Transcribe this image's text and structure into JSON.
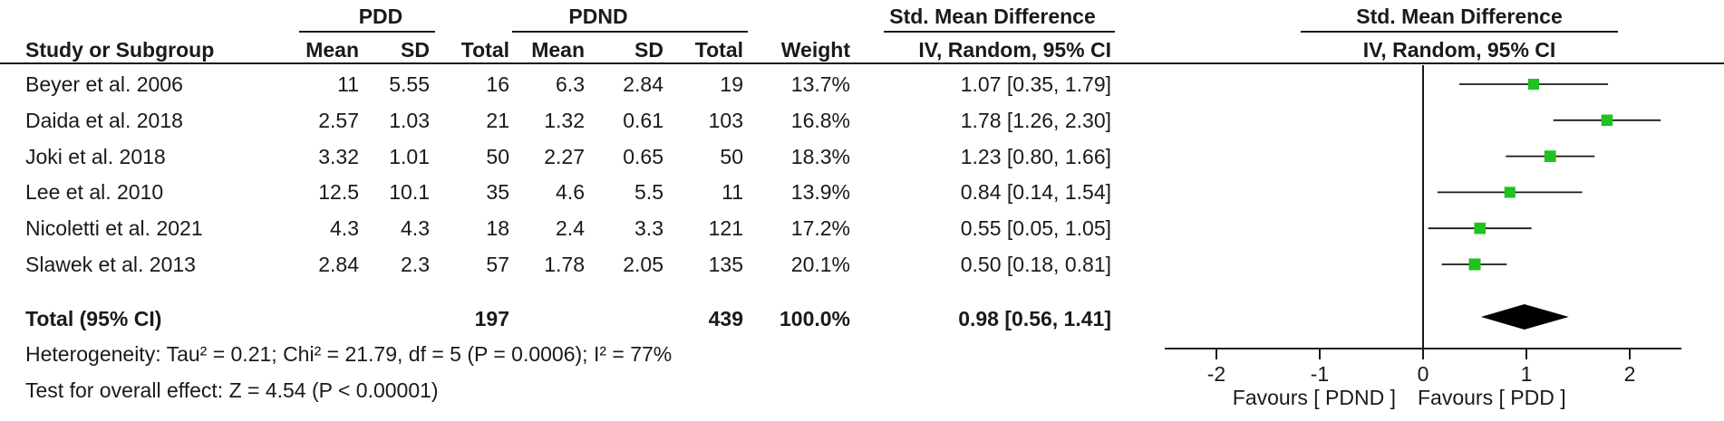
{
  "headers": {
    "group1": "PDD",
    "group2": "PDND",
    "smd_left": "Std. Mean Difference",
    "smd_right": "Std. Mean Difference",
    "study": "Study or Subgroup",
    "mean1": "Mean",
    "sd1": "SD",
    "total1": "Total",
    "mean2": "Mean",
    "sd2": "SD",
    "total2": "Total",
    "weight": "Weight",
    "method_left": "IV, Random, 95% CI",
    "method_right": "IV, Random, 95% CI"
  },
  "studies": [
    {
      "name": "Beyer et al. 2006",
      "mean1": "11",
      "sd1": "5.55",
      "total1": "16",
      "mean2": "6.3",
      "sd2": "2.84",
      "total2": "19",
      "weight": "13.7%",
      "ci_text": "1.07 [0.35, 1.79]"
    },
    {
      "name": "Daida et al. 2018",
      "mean1": "2.57",
      "sd1": "1.03",
      "total1": "21",
      "mean2": "1.32",
      "sd2": "0.61",
      "total2": "103",
      "weight": "16.8%",
      "ci_text": "1.78 [1.26, 2.30]"
    },
    {
      "name": "Joki et al. 2018",
      "mean1": "3.32",
      "sd1": "1.01",
      "total1": "50",
      "mean2": "2.27",
      "sd2": "0.65",
      "total2": "50",
      "weight": "18.3%",
      "ci_text": "1.23 [0.80, 1.66]"
    },
    {
      "name": "Lee et al. 2010",
      "mean1": "12.5",
      "sd1": "10.1",
      "total1": "35",
      "mean2": "4.6",
      "sd2": "5.5",
      "total2": "11",
      "weight": "13.9%",
      "ci_text": "0.84 [0.14, 1.54]"
    },
    {
      "name": "Nicoletti et al. 2021",
      "mean1": "4.3",
      "sd1": "4.3",
      "total1": "18",
      "mean2": "2.4",
      "sd2": "3.3",
      "total2": "121",
      "weight": "17.2%",
      "ci_text": "0.55 [0.05, 1.05]"
    },
    {
      "name": "Slawek et al. 2013",
      "mean1": "2.84",
      "sd1": "2.3",
      "total1": "57",
      "mean2": "1.78",
      "sd2": "2.05",
      "total2": "135",
      "weight": "20.1%",
      "ci_text": "0.50 [0.18, 0.81]"
    }
  ],
  "total": {
    "label": "Total (95% CI)",
    "total1": "197",
    "total2": "439",
    "weight": "100.0%",
    "ci_text": "0.98 [0.56, 1.41]"
  },
  "heterogeneity": "Heterogeneity: Tau² = 0.21; Chi² = 21.79, df = 5 (P = 0.0006); I² = 77%",
  "overall_test": "Test for overall effect: Z = 4.54 (P < 0.00001)",
  "favours_left": "Favours [ PDND ]",
  "favours_right": "Favours [ PDD ]",
  "colors": {
    "marker": "#1fc21f",
    "diamond": "#000000",
    "text": "#1a1a1a"
  },
  "chart_data": {
    "type": "forest",
    "title": "",
    "xlabel": "",
    "ylabel": "",
    "xlim": [
      -2.5,
      2.5
    ],
    "ticks": [
      -2,
      -1,
      0,
      1,
      2
    ],
    "tick_labels": [
      "-2",
      "-1",
      "0",
      "1",
      "2"
    ],
    "series": [
      {
        "name": "Beyer et al. 2006",
        "estimate": 1.07,
        "lower": 0.35,
        "upper": 1.79,
        "weight": 13.7
      },
      {
        "name": "Daida et al. 2018",
        "estimate": 1.78,
        "lower": 1.26,
        "upper": 2.3,
        "weight": 16.8
      },
      {
        "name": "Joki et al. 2018",
        "estimate": 1.23,
        "lower": 0.8,
        "upper": 1.66,
        "weight": 18.3
      },
      {
        "name": "Lee et al. 2010",
        "estimate": 0.84,
        "lower": 0.14,
        "upper": 1.54,
        "weight": 13.9
      },
      {
        "name": "Nicoletti et al. 2021",
        "estimate": 0.55,
        "lower": 0.05,
        "upper": 1.05,
        "weight": 17.2
      },
      {
        "name": "Slawek et al. 2013",
        "estimate": 0.5,
        "lower": 0.18,
        "upper": 0.81,
        "weight": 20.1
      }
    ],
    "pooled": {
      "estimate": 0.98,
      "lower": 0.56,
      "upper": 1.41
    }
  }
}
